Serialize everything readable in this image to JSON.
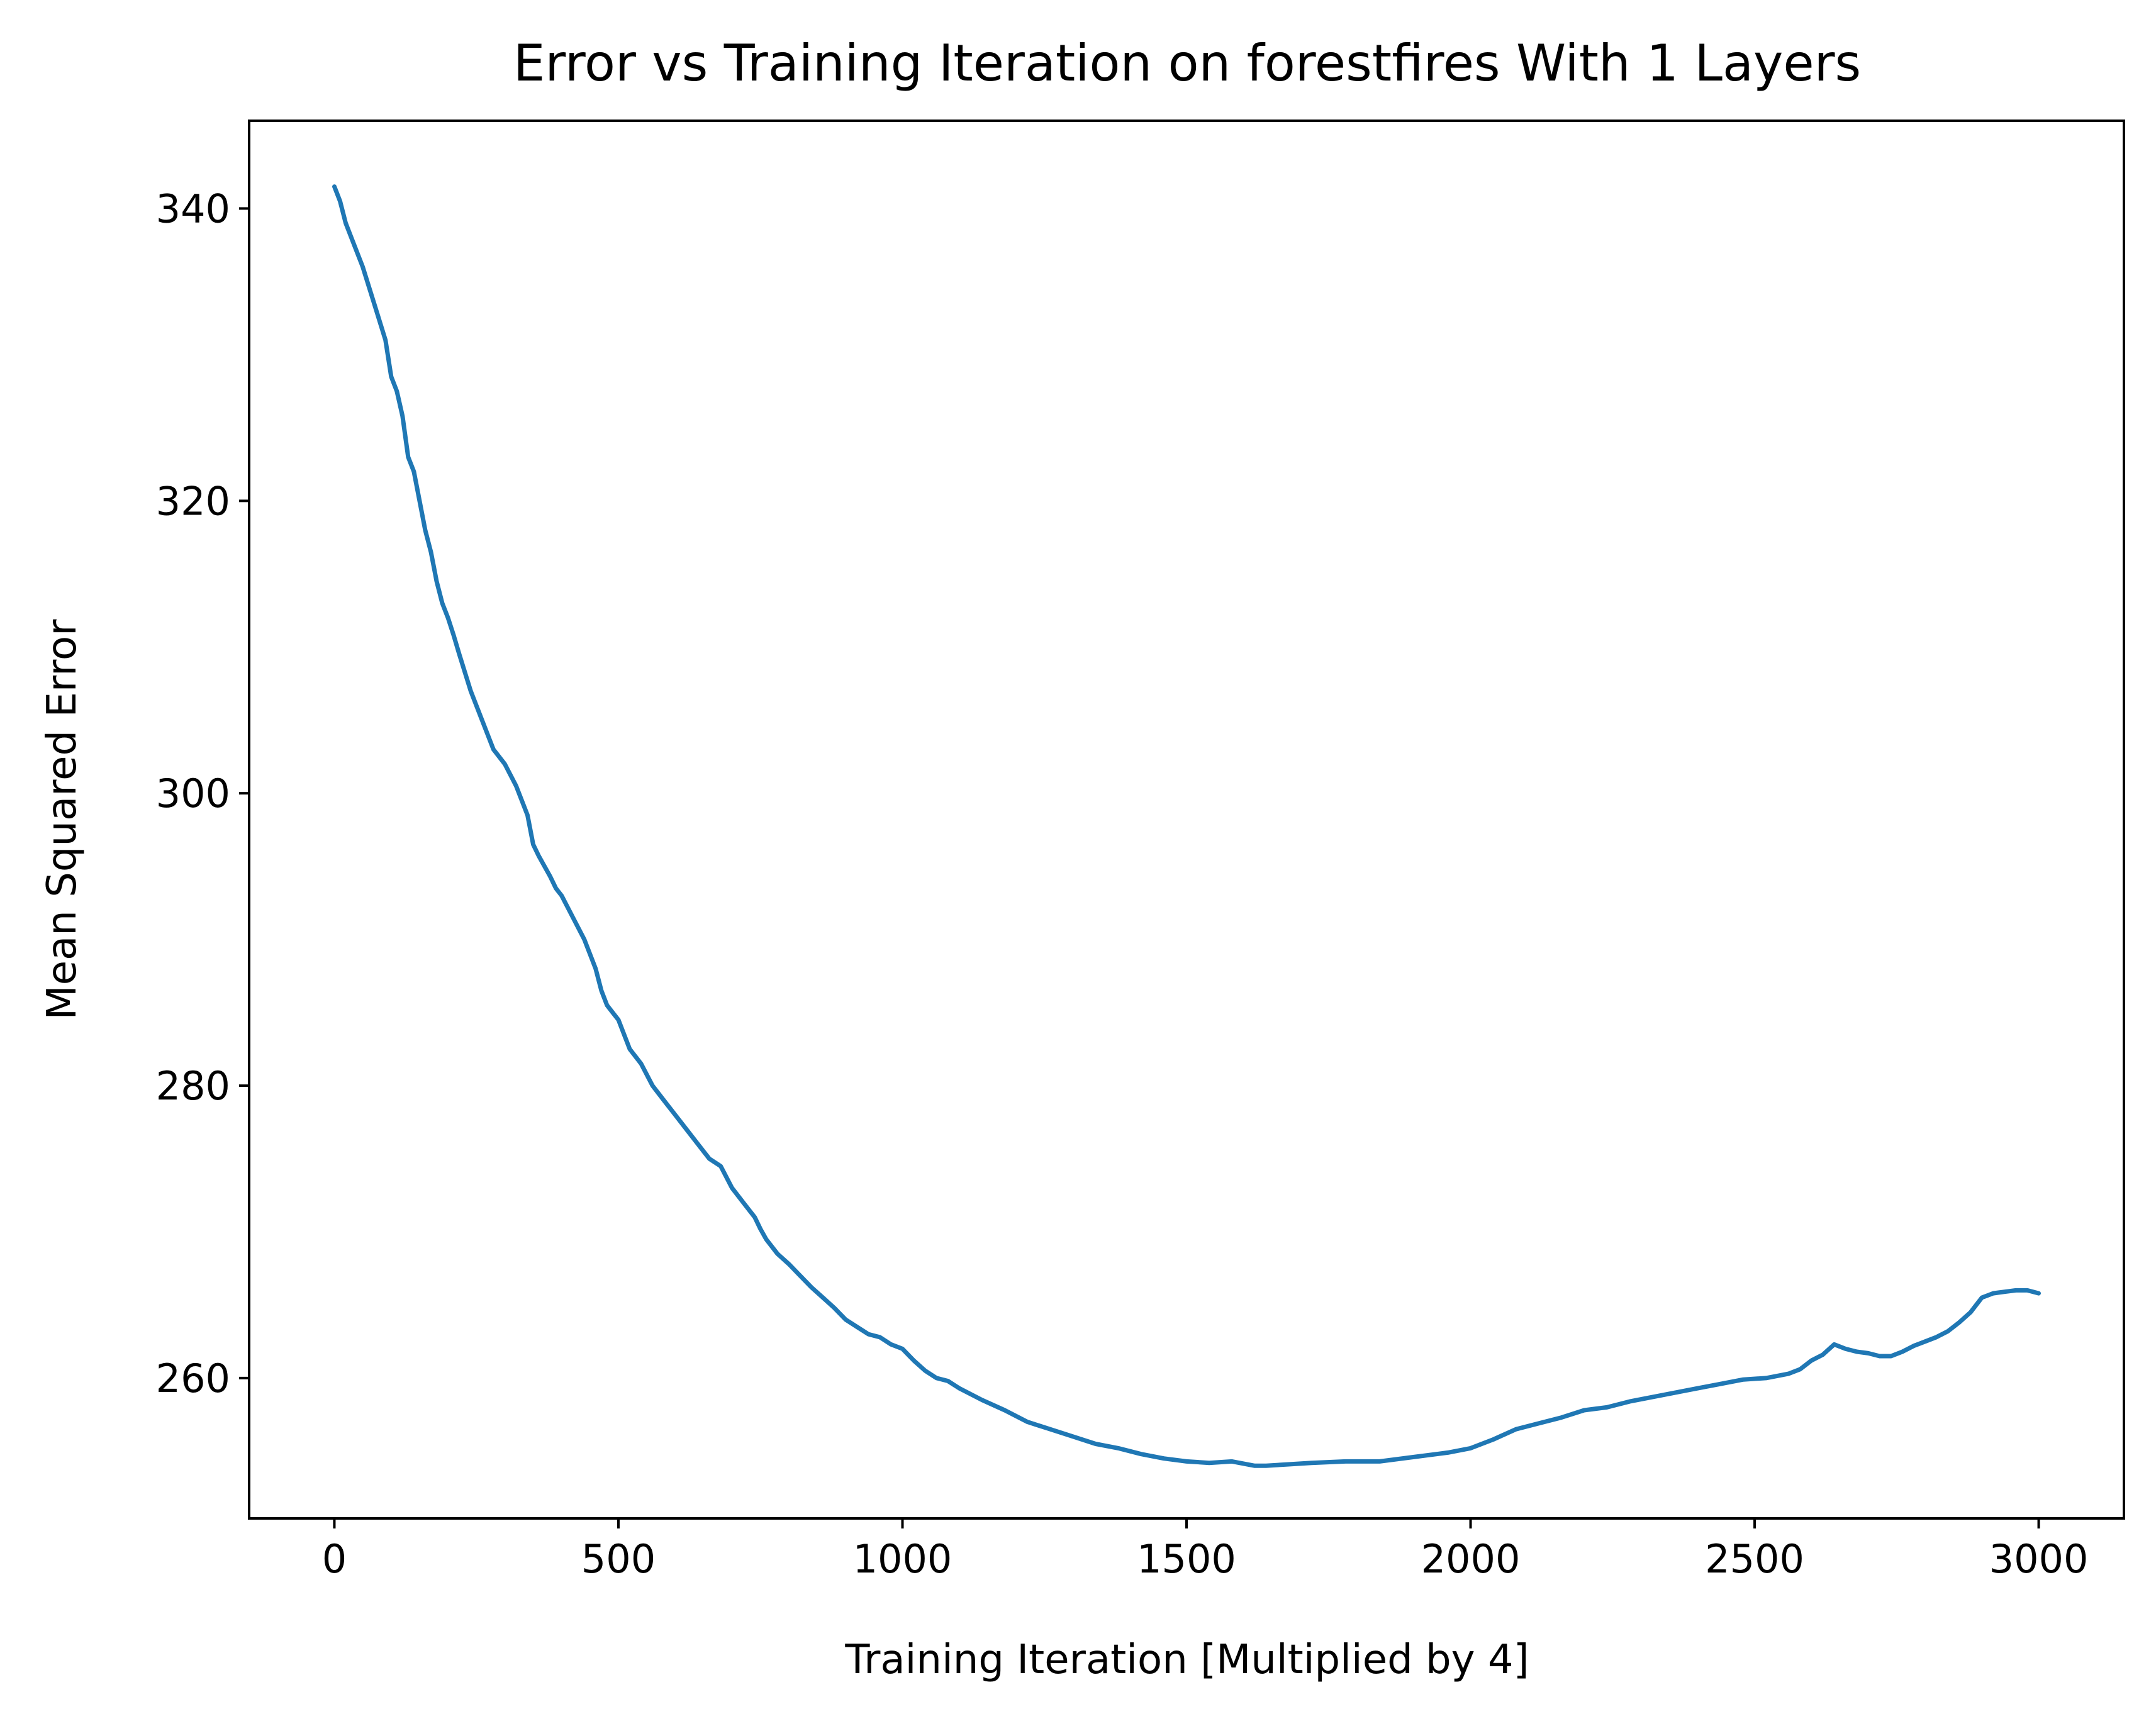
{
  "chart_data": {
    "type": "line",
    "title": "Error vs Training Iteration on forestfires With 1 Layers",
    "xlabel": "Training Iteration [Multiplied by 4]",
    "ylabel": "Mean Squared Error",
    "xlim": [
      -150,
      3150
    ],
    "ylim": [
      250.4,
      346.0
    ],
    "xticks": [
      0,
      500,
      1000,
      1500,
      2000,
      2500,
      3000
    ],
    "xtick_labels": [
      "0",
      "500",
      "1000",
      "1500",
      "2000",
      "2500",
      "3000"
    ],
    "yticks": [
      260,
      280,
      300,
      320,
      340
    ],
    "ytick_labels": [
      "260",
      "280",
      "300",
      "320",
      "340"
    ],
    "grid": false,
    "line_color": "#1f77b4",
    "series": [
      {
        "x": [
          0,
          10,
          20,
          30,
          50,
          70,
          90,
          100,
          110,
          120,
          130,
          140,
          150,
          160,
          170,
          180,
          190,
          200,
          210,
          220,
          240,
          260,
          280,
          300,
          320,
          340,
          350,
          360,
          370,
          380,
          390,
          400,
          420,
          440,
          460,
          470,
          480,
          490,
          500,
          520,
          540,
          560,
          580,
          600,
          620,
          640,
          660,
          680,
          700,
          720,
          740,
          750,
          760,
          780,
          800,
          820,
          840,
          860,
          880,
          900,
          920,
          940,
          960,
          980,
          1000,
          1020,
          1040,
          1060,
          1080,
          1100,
          1140,
          1180,
          1220,
          1260,
          1300,
          1340,
          1380,
          1420,
          1460,
          1500,
          1540,
          1580,
          1620,
          1640,
          1680,
          1720,
          1780,
          1840,
          1900,
          1960,
          2000,
          2040,
          2080,
          2120,
          2160,
          2200,
          2240,
          2280,
          2320,
          2360,
          2400,
          2440,
          2480,
          2520,
          2560,
          2580,
          2600,
          2620,
          2640,
          2660,
          2680,
          2700,
          2720,
          2740,
          2760,
          2780,
          2800,
          2820,
          2840,
          2860,
          2880,
          2900,
          2920,
          2940,
          2960,
          2980,
          3000
        ],
        "y": [
          341.5,
          340.5,
          339.0,
          338.0,
          336.0,
          333.5,
          331.0,
          328.5,
          327.5,
          325.8,
          323.0,
          322.0,
          320.0,
          318.0,
          316.5,
          314.5,
          313.0,
          312.0,
          310.8,
          309.5,
          307.0,
          305.0,
          303.0,
          302.0,
          300.5,
          298.5,
          296.5,
          295.7,
          295.0,
          294.3,
          293.5,
          293.0,
          291.5,
          290.0,
          288.0,
          286.5,
          285.5,
          285.0,
          284.5,
          282.5,
          281.5,
          280.0,
          279.0,
          278.0,
          277.0,
          276.0,
          275.0,
          274.5,
          273.0,
          272.0,
          271.0,
          270.2,
          269.5,
          268.5,
          267.8,
          267.0,
          266.2,
          265.5,
          264.8,
          264.0,
          263.5,
          263.0,
          262.8,
          262.3,
          262.0,
          261.2,
          260.5,
          260.0,
          259.8,
          259.3,
          258.5,
          257.8,
          257.0,
          256.5,
          256.0,
          255.5,
          255.2,
          254.8,
          254.5,
          254.3,
          254.2,
          254.3,
          254.0,
          254.0,
          254.1,
          254.2,
          254.3,
          254.3,
          254.6,
          254.9,
          255.2,
          255.8,
          256.5,
          256.9,
          257.3,
          257.8,
          258.0,
          258.4,
          258.7,
          259.0,
          259.3,
          259.6,
          259.9,
          260.0,
          260.3,
          260.6,
          261.2,
          261.6,
          262.3,
          262.0,
          261.8,
          261.7,
          261.5,
          261.5,
          261.8,
          262.2,
          262.5,
          262.8,
          263.2,
          263.8,
          264.5,
          265.5,
          265.8,
          265.9,
          266.0,
          266.0,
          265.8
        ]
      }
    ]
  }
}
